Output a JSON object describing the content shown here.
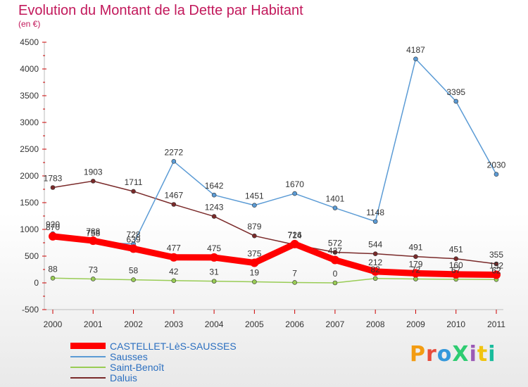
{
  "chart_data": {
    "type": "line",
    "title": "Evolution du Montant de la Dette par Habitant",
    "subtitle": "(en €)",
    "x": [
      "2000",
      "2001",
      "2002",
      "2003",
      "2004",
      "2005",
      "2006",
      "2007",
      "2008",
      "2009",
      "2010",
      "2011"
    ],
    "ylim": [
      -500,
      4500
    ],
    "yticks": [
      -500,
      0,
      500,
      1000,
      1500,
      2000,
      2500,
      3000,
      3500,
      4000,
      4500
    ],
    "grid": false,
    "legend_position": "bottom-left",
    "series": [
      {
        "name": "CASTELLET-LèS-SAUSSES",
        "color": "#ff0000",
        "values": [
          870,
          788,
          639,
          477,
          475,
          375,
          726,
          427,
          212,
          179,
          160,
          152
        ]
      },
      {
        "name": "Sausses",
        "color": "#5b9bd5",
        "values": [
          920,
          758,
          728,
          2272,
          1642,
          1451,
          1670,
          1401,
          1148,
          4187,
          3395,
          2030
        ]
      },
      {
        "name": "Saint-Benoît",
        "color": "#99cc55",
        "values": [
          88,
          73,
          58,
          42,
          31,
          19,
          7,
          0,
          82,
          72,
          67,
          62
        ]
      },
      {
        "name": "Daluis",
        "color": "#7a2a2a",
        "values": [
          1783,
          1903,
          1711,
          1467,
          1243,
          879,
          714,
          572,
          544,
          491,
          451,
          355
        ]
      }
    ],
    "data_labels": [
      [
        "870",
        "788",
        "639",
        "477",
        "475",
        "375",
        "726",
        "427",
        "212",
        "179",
        "160",
        "152"
      ],
      [
        "920",
        "758",
        "728",
        "2272",
        "1642",
        "1451",
        "1670",
        "1401",
        "1148",
        "4187",
        "3395",
        "2030"
      ],
      [
        "88",
        "73",
        "58",
        "42",
        "31",
        "19",
        "7",
        "0",
        "82",
        "72",
        "67",
        "62"
      ],
      [
        "1783",
        "1903",
        "1711",
        "1467",
        "1243",
        "879",
        "714",
        "572",
        "544",
        "491",
        "451",
        "355"
      ]
    ]
  },
  "logo": {
    "text": "ProXiti",
    "colors": [
      "#f39c12",
      "#e74c3c",
      "#3498db",
      "#2ecc71",
      "#9b59b6",
      "#f1c40f",
      "#1abc9c"
    ]
  }
}
